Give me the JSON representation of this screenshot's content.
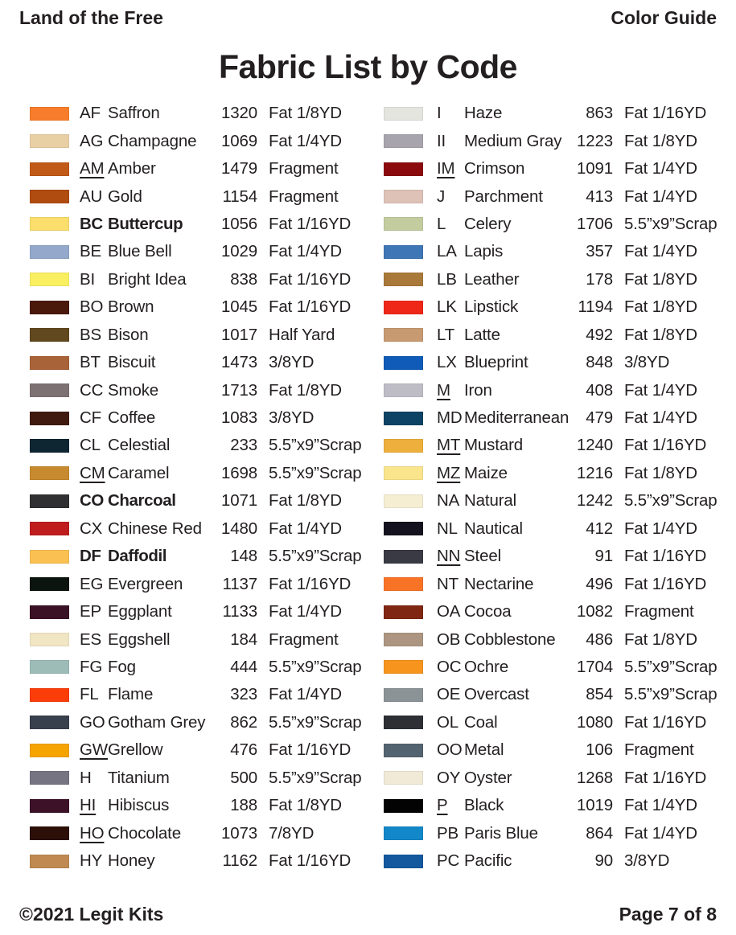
{
  "header": {
    "left": "Land of the Free",
    "right": "Color Guide"
  },
  "title": "Fabric List by Code",
  "footer": {
    "left": "©2021 Legit Kits",
    "right": "Page 7 of 8"
  },
  "text_color": "#231f20",
  "columns": [
    {
      "rows": [
        {
          "code": "AF",
          "name": "Saffron",
          "number": "1320",
          "qty": "Fat 1/8YD",
          "color": "#F77D2C",
          "underline": false,
          "bold": false
        },
        {
          "code": "AG",
          "name": "Champagne",
          "number": "1069",
          "qty": "Fat 1/4YD",
          "color": "#E9CFA4",
          "underline": false,
          "bold": false
        },
        {
          "code": "AM",
          "name": "Amber",
          "number": "1479",
          "qty": "Fragment",
          "color": "#C25A17",
          "underline": true,
          "bold": false
        },
        {
          "code": "AU",
          "name": "Gold",
          "number": "1154",
          "qty": "Fragment",
          "color": "#B04C10",
          "underline": false,
          "bold": false
        },
        {
          "code": "BC",
          "name": "Buttercup",
          "number": "1056",
          "qty": "Fat 1/16YD",
          "color": "#FBDE6B",
          "underline": false,
          "bold": true
        },
        {
          "code": "BE",
          "name": "Blue Bell",
          "number": "1029",
          "qty": "Fat 1/4YD",
          "color": "#93A8CB",
          "underline": false,
          "bold": false
        },
        {
          "code": "BI",
          "name": "Bright Idea",
          "number": "838",
          "qty": "Fat 1/16YD",
          "color": "#FAEF60",
          "underline": false,
          "bold": false
        },
        {
          "code": "BO",
          "name": "Brown",
          "number": "1045",
          "qty": "Fat 1/16YD",
          "color": "#4B180C",
          "underline": false,
          "bold": false
        },
        {
          "code": "BS",
          "name": "Bison",
          "number": "1017",
          "qty": "Half Yard",
          "color": "#61481E",
          "underline": false,
          "bold": false
        },
        {
          "code": "BT",
          "name": "Biscuit",
          "number": "1473",
          "qty": "3/8YD",
          "color": "#A96339",
          "underline": false,
          "bold": false
        },
        {
          "code": "CC",
          "name": "Smoke",
          "number": "1713",
          "qty": "Fat 1/8YD",
          "color": "#7D7173",
          "underline": false,
          "bold": false
        },
        {
          "code": "CF",
          "name": "Coffee",
          "number": "1083",
          "qty": "3/8YD",
          "color": "#401A0F",
          "underline": false,
          "bold": false
        },
        {
          "code": "CL",
          "name": "Celestial",
          "number": "233",
          "qty": "5.5”x9”Scrap",
          "color": "#0E2532",
          "underline": false,
          "bold": false
        },
        {
          "code": "CM",
          "name": "Caramel",
          "number": "1698",
          "qty": "5.5”x9”Scrap",
          "color": "#C78A2E",
          "underline": true,
          "bold": false
        },
        {
          "code": "CO",
          "name": "Charcoal",
          "number": "1071",
          "qty": "Fat 1/8YD",
          "color": "#302F31",
          "underline": false,
          "bold": true
        },
        {
          "code": "CX",
          "name": "Chinese Red",
          "number": "1480",
          "qty": "Fat 1/4YD",
          "color": "#BF1C1E",
          "underline": false,
          "bold": false
        },
        {
          "code": "DF",
          "name": "Daffodil",
          "number": "148",
          "qty": "5.5”x9”Scrap",
          "color": "#FAC152",
          "underline": false,
          "bold": true
        },
        {
          "code": "EG",
          "name": "Evergreen",
          "number": "1137",
          "qty": "Fat 1/16YD",
          "color": "#0B150D",
          "underline": false,
          "bold": false
        },
        {
          "code": "EP",
          "name": "Eggplant",
          "number": "1133",
          "qty": "Fat 1/4YD",
          "color": "#3B1126",
          "underline": false,
          "bold": false
        },
        {
          "code": "ES",
          "name": "Eggshell",
          "number": "184",
          "qty": "Fragment",
          "color": "#F1E6C3",
          "underline": false,
          "bold": false
        },
        {
          "code": "FG",
          "name": "Fog",
          "number": "444",
          "qty": "5.5”x9”Scrap",
          "color": "#9DBCB8",
          "underline": false,
          "bold": false
        },
        {
          "code": "FL",
          "name": "Flame",
          "number": "323",
          "qty": "Fat 1/4YD",
          "color": "#FB3D0A",
          "underline": false,
          "bold": false
        },
        {
          "code": "GO",
          "name": "Gotham Grey",
          "number": "862",
          "qty": "5.5”x9”Scrap",
          "color": "#383F4D",
          "underline": false,
          "bold": false
        },
        {
          "code": "GW",
          "name": "Grellow",
          "number": "476",
          "qty": "Fat 1/16YD",
          "color": "#F5A401",
          "underline": true,
          "bold": false
        },
        {
          "code": "H",
          "name": "Titanium",
          "number": "500",
          "qty": "5.5”x9”Scrap",
          "color": "#767382",
          "underline": false,
          "bold": false
        },
        {
          "code": "HI",
          "name": "Hibiscus",
          "number": "188",
          "qty": "Fat 1/8YD",
          "color": "#3D1229",
          "underline": true,
          "bold": false
        },
        {
          "code": "HO",
          "name": "Chocolate",
          "number": "1073",
          "qty": "7/8YD",
          "color": "#2C1007",
          "underline": true,
          "bold": false
        },
        {
          "code": "HY",
          "name": "Honey",
          "number": "1162",
          "qty": "Fat 1/16YD",
          "color": "#BF8951",
          "underline": false,
          "bold": false
        }
      ]
    },
    {
      "rows": [
        {
          "code": "I",
          "name": "Haze",
          "number": "863",
          "qty": "Fat 1/16YD",
          "color": "#E3E5DE",
          "underline": false,
          "bold": false
        },
        {
          "code": "II",
          "name": "Medium Gray",
          "number": "1223",
          "qty": "Fat 1/8YD",
          "color": "#A8A4AD",
          "underline": false,
          "bold": false
        },
        {
          "code": "IM",
          "name": "Crimson",
          "number": "1091",
          "qty": "Fat 1/4YD",
          "color": "#8B0A0E",
          "underline": true,
          "bold": false
        },
        {
          "code": "J",
          "name": "Parchment",
          "number": "413",
          "qty": "Fat 1/4YD",
          "color": "#DEC2B7",
          "underline": false,
          "bold": false
        },
        {
          "code": "L",
          "name": "Celery",
          "number": "1706",
          "qty": "5.5”x9”Scrap",
          "color": "#C2CC9E",
          "underline": false,
          "bold": false
        },
        {
          "code": "LA",
          "name": "Lapis",
          "number": "357",
          "qty": "Fat 1/4YD",
          "color": "#3F76B6",
          "underline": false,
          "bold": false
        },
        {
          "code": "LB",
          "name": "Leather",
          "number": "178",
          "qty": "Fat 1/8YD",
          "color": "#A87939",
          "underline": false,
          "bold": false
        },
        {
          "code": "LK",
          "name": "Lipstick",
          "number": "1194",
          "qty": "Fat 1/8YD",
          "color": "#EF2718",
          "underline": false,
          "bold": false
        },
        {
          "code": "LT",
          "name": "Latte",
          "number": "492",
          "qty": "Fat 1/8YD",
          "color": "#C89A71",
          "underline": false,
          "bold": false
        },
        {
          "code": "LX",
          "name": "Blueprint",
          "number": "848",
          "qty": "3/8YD",
          "color": "#0F5BB7",
          "underline": false,
          "bold": false
        },
        {
          "code": "M",
          "name": "Iron",
          "number": "408",
          "qty": "Fat 1/4YD",
          "color": "#BEBDC6",
          "underline": true,
          "bold": false
        },
        {
          "code": "MD",
          "name": "Mediterranean",
          "number": "479",
          "qty": "Fat 1/4YD",
          "color": "#0D4364",
          "underline": false,
          "bold": false
        },
        {
          "code": "MT",
          "name": "Mustard",
          "number": "1240",
          "qty": "Fat 1/16YD",
          "color": "#EEB03C",
          "underline": true,
          "bold": false
        },
        {
          "code": "MZ",
          "name": "Maize",
          "number": "1216",
          "qty": "Fat 1/8YD",
          "color": "#FAE58C",
          "underline": true,
          "bold": false
        },
        {
          "code": "NA",
          "name": "Natural",
          "number": "1242",
          "qty": "5.5”x9”Scrap",
          "color": "#F5EED2",
          "underline": false,
          "bold": false
        },
        {
          "code": "NL",
          "name": "Nautical",
          "number": "412",
          "qty": "Fat 1/4YD",
          "color": "#15121F",
          "underline": false,
          "bold": false
        },
        {
          "code": "NN",
          "name": "Steel",
          "number": "91",
          "qty": "Fat 1/16YD",
          "color": "#3A3A45",
          "underline": true,
          "bold": false
        },
        {
          "code": "NT",
          "name": "Nectarine",
          "number": "496",
          "qty": "Fat 1/16YD",
          "color": "#F97327",
          "underline": false,
          "bold": false
        },
        {
          "code": "OA",
          "name": "Cocoa",
          "number": "1082",
          "qty": "Fragment",
          "color": "#7F2712",
          "underline": false,
          "bold": false
        },
        {
          "code": "OB",
          "name": "Cobblestone",
          "number": "486",
          "qty": "Fat 1/8YD",
          "color": "#AC9681",
          "underline": false,
          "bold": false
        },
        {
          "code": "OC",
          "name": "Ochre",
          "number": "1704",
          "qty": "5.5”x9”Scrap",
          "color": "#F7941E",
          "underline": false,
          "bold": false
        },
        {
          "code": "OE",
          "name": "Overcast",
          "number": "854",
          "qty": "5.5”x9”Scrap",
          "color": "#8B9397",
          "underline": false,
          "bold": false
        },
        {
          "code": "OL",
          "name": "Coal",
          "number": "1080",
          "qty": "Fat 1/16YD",
          "color": "#2D2F35",
          "underline": false,
          "bold": false
        },
        {
          "code": "OO",
          "name": "Metal",
          "number": "106",
          "qty": "Fragment",
          "color": "#546370",
          "underline": false,
          "bold": false
        },
        {
          "code": "OY",
          "name": "Oyster",
          "number": "1268",
          "qty": "Fat 1/16YD",
          "color": "#F0EAD6",
          "underline": false,
          "bold": false
        },
        {
          "code": "P",
          "name": "Black",
          "number": "1019",
          "qty": "Fat 1/4YD",
          "color": "#030303",
          "underline": true,
          "bold": false
        },
        {
          "code": "PB",
          "name": "Paris Blue",
          "number": "864",
          "qty": "Fat 1/4YD",
          "color": "#1288C8",
          "underline": false,
          "bold": false
        },
        {
          "code": "PC",
          "name": "Pacific",
          "number": "90",
          "qty": "3/8YD",
          "color": "#14589E",
          "underline": false,
          "bold": false
        }
      ]
    }
  ]
}
